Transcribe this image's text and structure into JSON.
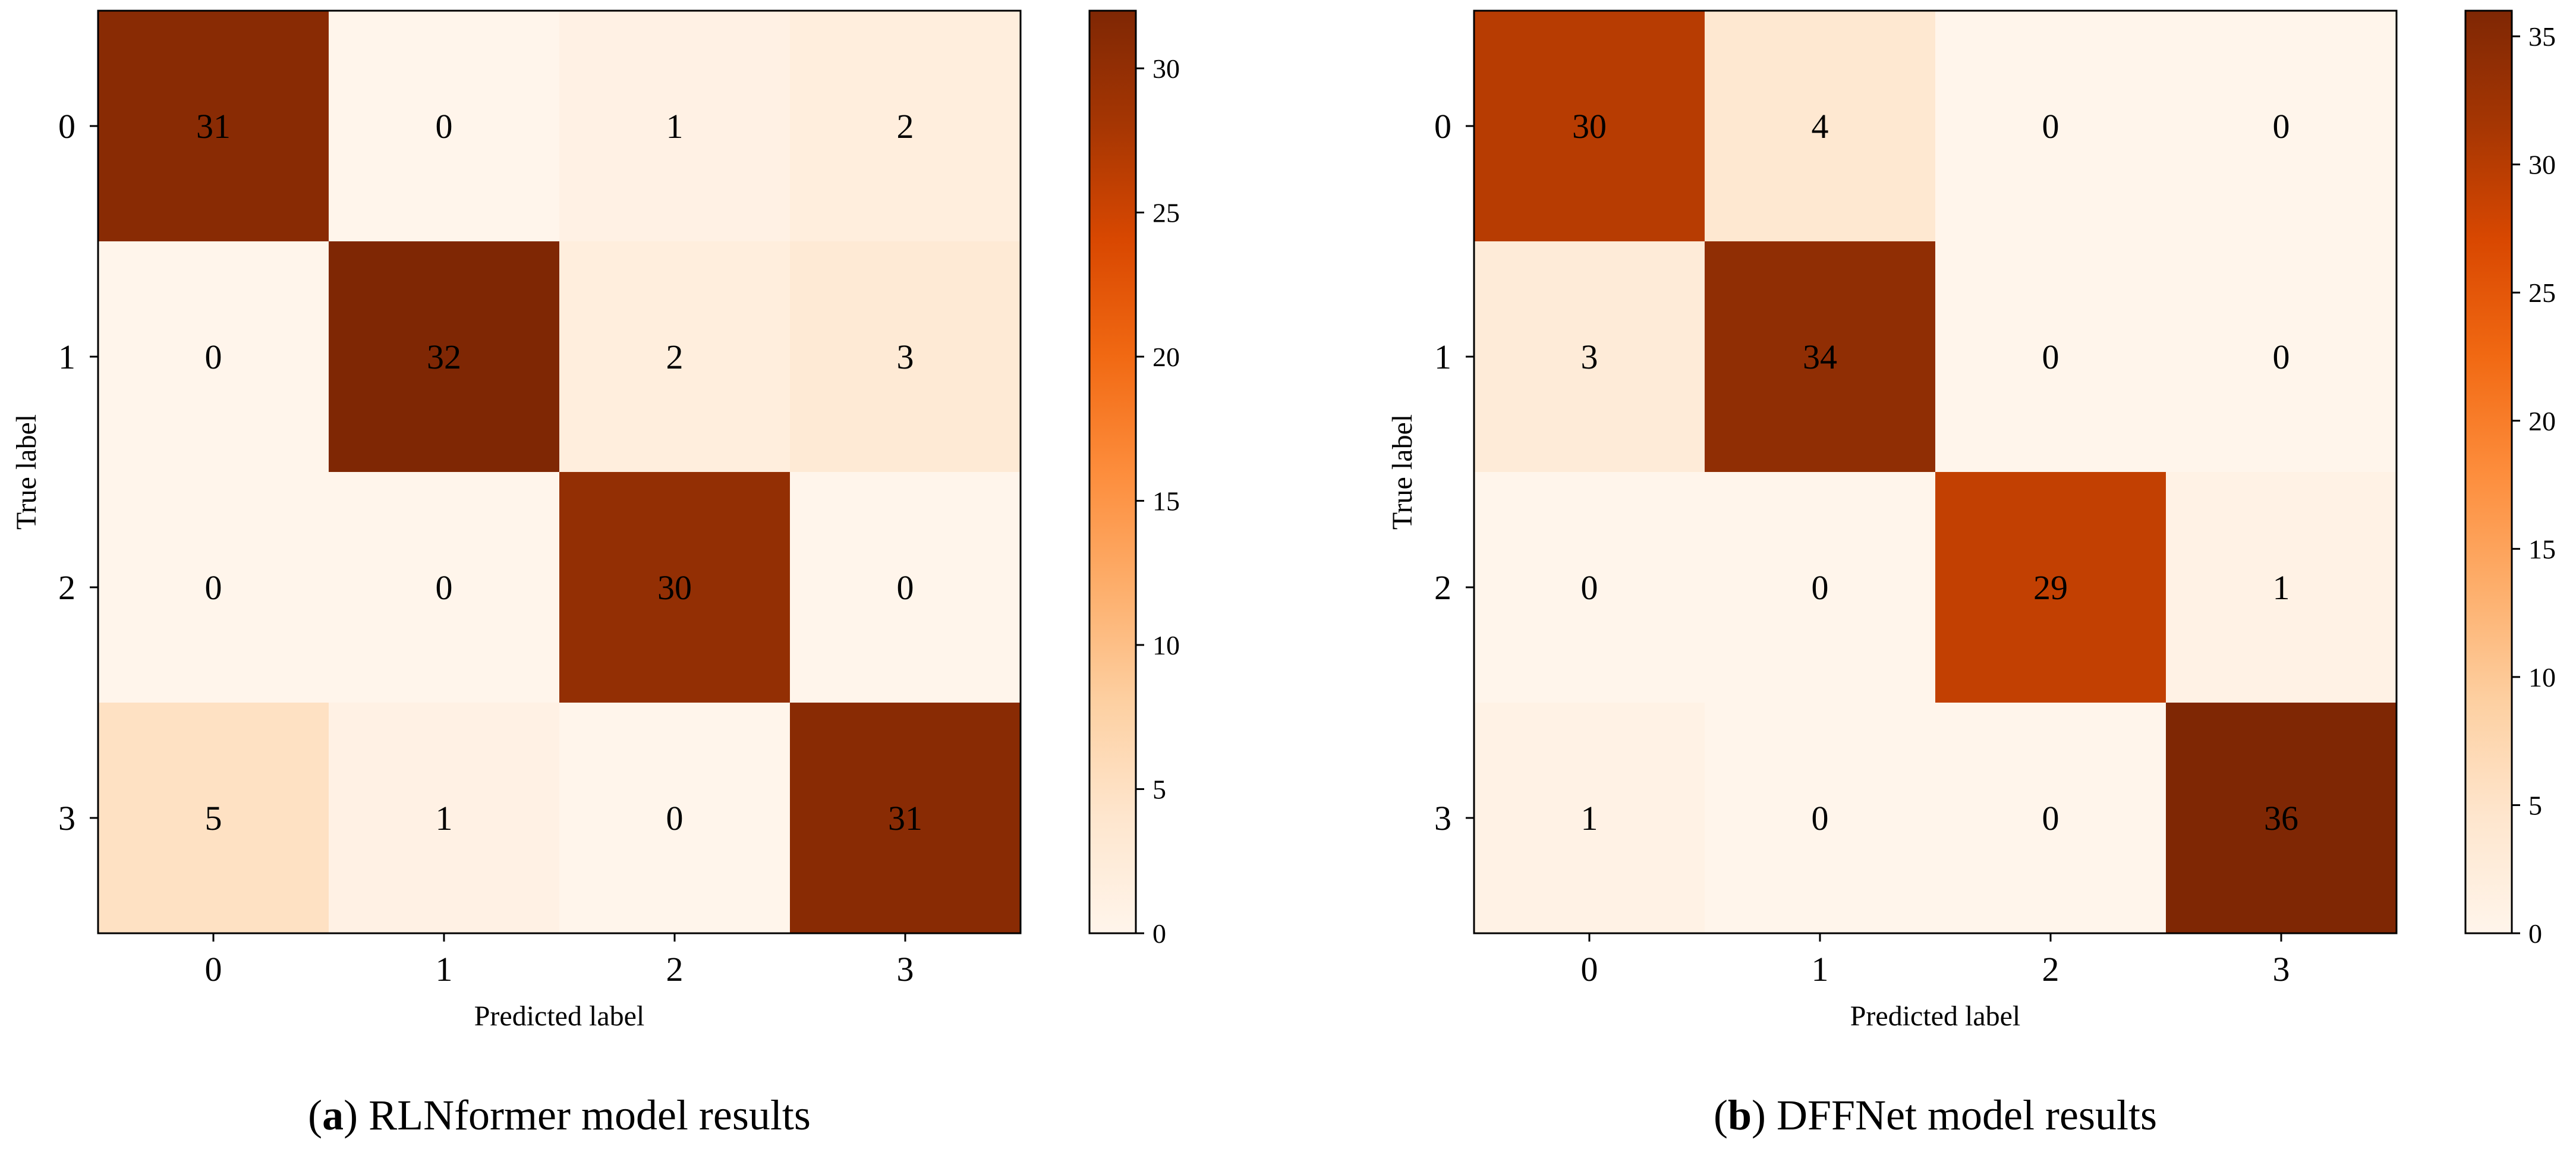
{
  "chart_data": [
    {
      "type": "heatmap",
      "caption_letter": "a",
      "caption_text": "RLNformer model results",
      "xlabel": "Predicted label",
      "ylabel": "True label",
      "x_ticks": [
        "0",
        "1",
        "2",
        "3"
      ],
      "y_ticks": [
        "0",
        "1",
        "2",
        "3"
      ],
      "matrix": [
        [
          31,
          0,
          1,
          2
        ],
        [
          0,
          32,
          2,
          3
        ],
        [
          0,
          0,
          30,
          0
        ],
        [
          5,
          1,
          0,
          31
        ]
      ],
      "colorbar": {
        "min": 0,
        "max": 32,
        "ticks": [
          0,
          5,
          10,
          15,
          20,
          25,
          30
        ]
      },
      "colormap": "Oranges"
    },
    {
      "type": "heatmap",
      "caption_letter": "b",
      "caption_text": "DFFNet model results",
      "xlabel": "Predicted label",
      "ylabel": "True label",
      "x_ticks": [
        "0",
        "1",
        "2",
        "3"
      ],
      "y_ticks": [
        "0",
        "1",
        "2",
        "3"
      ],
      "matrix": [
        [
          30,
          4,
          0,
          0
        ],
        [
          3,
          34,
          0,
          0
        ],
        [
          0,
          0,
          29,
          1
        ],
        [
          1,
          0,
          0,
          36
        ]
      ],
      "colorbar": {
        "min": 0,
        "max": 36,
        "ticks": [
          0,
          5,
          10,
          15,
          20,
          25,
          30,
          35
        ]
      },
      "colormap": "Oranges"
    }
  ]
}
